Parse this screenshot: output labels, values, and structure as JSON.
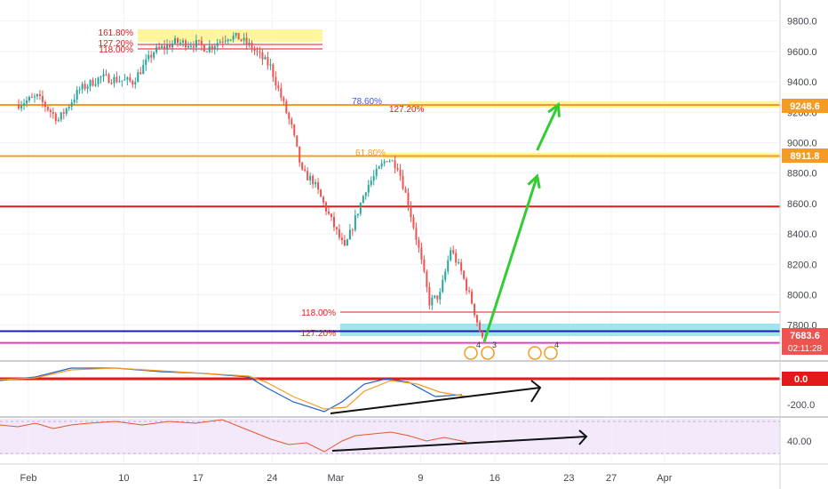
{
  "chart_data": {
    "type": "candlestick",
    "title": "",
    "xlabel": "",
    "ylabel": "",
    "ylim": [
      7570,
      9880
    ],
    "y_ticks": [
      "9800.0",
      "9600.0",
      "9400.0",
      "9200.0",
      "9000.0",
      "8800.0",
      "8600.0",
      "8400.0",
      "8200.0",
      "8000.0",
      "7800.0"
    ],
    "x_ticks": [
      "Feb",
      "10",
      "17",
      "24",
      "Mar",
      "9",
      "16",
      "23",
      "27",
      "Apr"
    ],
    "price_tags": [
      "9248.6",
      "8911.8",
      "7683.6",
      "02:11:28"
    ],
    "indicator_tags": [
      "0.0",
      "-200.0",
      "40.00"
    ],
    "fib_labels": [
      "161.80%",
      "127.20%",
      "118.00%",
      "78.60%",
      "127.20%",
      "61.80%",
      "118.00%",
      "127.20%"
    ],
    "event_counts": [
      "4",
      "3",
      "4"
    ],
    "price_path_waypoints": [
      {
        "date": "2020-01-31",
        "price": 9250
      },
      {
        "date": "2020-02-02",
        "price": 9300
      },
      {
        "date": "2020-02-04",
        "price": 9150
      },
      {
        "date": "2020-02-06",
        "price": 9350
      },
      {
        "date": "2020-02-08",
        "price": 9430
      },
      {
        "date": "2020-02-11",
        "price": 9400
      },
      {
        "date": "2020-02-13",
        "price": 9600
      },
      {
        "date": "2020-02-15",
        "price": 9660
      },
      {
        "date": "2020-02-17",
        "price": 9650
      },
      {
        "date": "2020-02-18",
        "price": 9620
      },
      {
        "date": "2020-02-20",
        "price": 9700
      },
      {
        "date": "2020-02-21",
        "price": 9690
      },
      {
        "date": "2020-02-22",
        "price": 9640
      },
      {
        "date": "2020-02-24",
        "price": 9500
      },
      {
        "date": "2020-02-25",
        "price": 9300
      },
      {
        "date": "2020-02-26",
        "price": 9100
      },
      {
        "date": "2020-02-27",
        "price": 8800
      },
      {
        "date": "2020-02-28",
        "price": 8750
      },
      {
        "date": "2020-02-29",
        "price": 8600
      },
      {
        "date": "2020-03-01",
        "price": 8450
      },
      {
        "date": "2020-03-02",
        "price": 8300
      },
      {
        "date": "2020-03-03",
        "price": 8500
      },
      {
        "date": "2020-03-04",
        "price": 8700
      },
      {
        "date": "2020-03-05",
        "price": 8800
      },
      {
        "date": "2020-03-06",
        "price": 8900
      },
      {
        "date": "2020-03-07",
        "price": 8850
      },
      {
        "date": "2020-03-08",
        "price": 8600
      },
      {
        "date": "2020-03-09",
        "price": 8300
      },
      {
        "date": "2020-03-10",
        "price": 7950
      },
      {
        "date": "2020-03-11",
        "price": 8000
      },
      {
        "date": "2020-03-12",
        "price": 8300
      },
      {
        "date": "2020-03-13",
        "price": 8150
      },
      {
        "date": "2020-03-14",
        "price": 7950
      },
      {
        "date": "2020-03-15",
        "price": 7700
      }
    ],
    "horizontal_levels": [
      {
        "price": 9248.6,
        "color": "#f59b23"
      },
      {
        "price": 8911.8,
        "color": "#f59b23"
      },
      {
        "price": 8580,
        "color": "#e21a1a"
      },
      {
        "price": 7760,
        "color": "#1c1ca8"
      },
      {
        "price": 7683.6,
        "color": "#e040c0"
      }
    ],
    "projection_arrows": [
      {
        "from": {
          "date": "2020-03-15",
          "price": 7690
        },
        "to": {
          "date": "2020-03-20",
          "price": 8780
        }
      },
      {
        "from": {
          "date": "2020-03-20",
          "price": 8950
        },
        "to": {
          "date": "2020-03-22",
          "price": 9250
        }
      }
    ],
    "oscillator_tag": "0.0",
    "rsi_tag": "40.00",
    "colors": {
      "up": "#26a69a",
      "down": "#ef5350",
      "fib_band": "#fff176",
      "support_band": "#80deea",
      "arrow": "#33cc33"
    }
  }
}
